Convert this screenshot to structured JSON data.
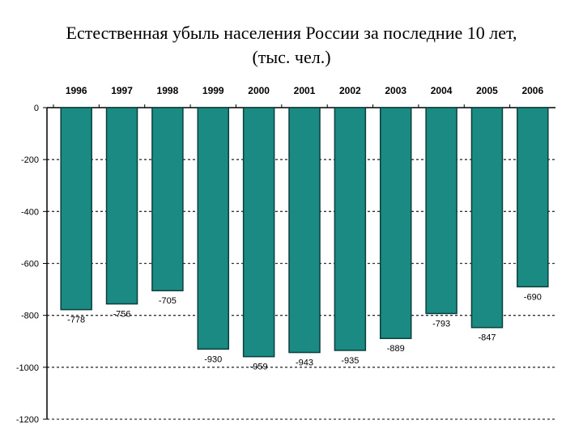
{
  "title_line1": "Естественная убыль населения России за последние 10 лет,",
  "title_line2": "(тыс. чел.)",
  "chart_data": {
    "type": "bar",
    "title": "Естественная убыль населения России за последние 10 лет, (тыс. чел.)",
    "categories": [
      "1996",
      "1997",
      "1998",
      "1999",
      "2000",
      "2001",
      "2002",
      "2003",
      "2004",
      "2005",
      "2006"
    ],
    "values": [
      -778,
      -756,
      -705,
      -930,
      -959,
      -943,
      -935,
      -889,
      -793,
      -847,
      -690
    ],
    "data_labels": [
      "-778",
      "-756",
      "-705",
      "-930",
      "-959",
      "-943",
      "-935",
      "-889",
      "-793",
      "-847",
      "-690"
    ],
    "yticks": [
      "0",
      "-200",
      "-400",
      "-600",
      "-800",
      "-1000",
      "-1200"
    ],
    "ytick_values": [
      0,
      -200,
      -400,
      -600,
      -800,
      -1000,
      -1200
    ],
    "ylim": [
      -1200,
      0
    ],
    "xaxis_position": "top",
    "grid": "dashed horizontal",
    "bar_color": "#1a8a83",
    "bar_edge_color": "#0b3f3b"
  }
}
